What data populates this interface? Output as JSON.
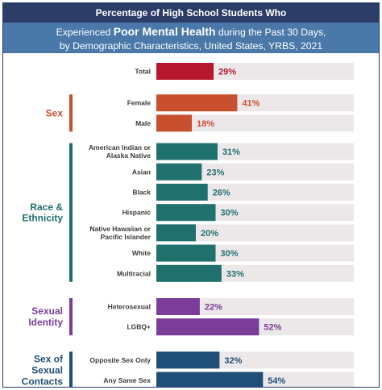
{
  "header": {
    "line1": "Percentage of High School Students Who",
    "line2_prefix": "Experienced ",
    "line2_bold": "Poor Mental Health",
    "line2_suffix": " during the Past 30 Days,",
    "line3": "by Demographic Characteristics, United States, YRBS, 2021"
  },
  "chart_data": {
    "type": "bar",
    "orientation": "horizontal",
    "title": "Percentage of High School Students Who Experienced Poor Mental Health during the Past 30 Days, by Demographic Characteristics, United States, YRBS, 2021",
    "xlim": [
      0,
      100
    ],
    "x_ticks": [
      "0%",
      "100%"
    ],
    "groups": [
      {
        "name": "",
        "color": "#b5172d",
        "bars": [
          {
            "label": "Total",
            "value": 29,
            "text": "29%"
          }
        ]
      },
      {
        "name": "Sex",
        "color": "#c9502f",
        "bars": [
          {
            "label": "Female",
            "value": 41,
            "text": "41%"
          },
          {
            "label": "Male",
            "value": 18,
            "text": "18%"
          }
        ]
      },
      {
        "name": "Race & Ethnicity",
        "color": "#20706e",
        "bars": [
          {
            "label": "American Indian or Alaska Native",
            "value": 31,
            "text": "31%"
          },
          {
            "label": "Asian",
            "value": 23,
            "text": "23%"
          },
          {
            "label": "Black",
            "value": 26,
            "text": "26%"
          },
          {
            "label": "Hispanic",
            "value": 30,
            "text": "30%"
          },
          {
            "label": "Native Hawaiian or Pacific Islander",
            "value": 20,
            "text": "20%"
          },
          {
            "label": "White",
            "value": 30,
            "text": "30%"
          },
          {
            "label": "Multiracial",
            "value": 33,
            "text": "33%"
          }
        ]
      },
      {
        "name": "Sexual Identity",
        "color": "#7a3d9a",
        "bars": [
          {
            "label": "Heterosexual",
            "value": 22,
            "text": "22%"
          },
          {
            "label": "LGBQ+",
            "value": 52,
            "text": "52%"
          }
        ]
      },
      {
        "name": "Sex of Sexual Contacts",
        "color": "#1f4f78",
        "bars": [
          {
            "label": "Opposite Sex Only",
            "value": 32,
            "text": "32%"
          },
          {
            "label": "Any Same Sex",
            "value": 54,
            "text": "54%"
          }
        ]
      }
    ]
  }
}
